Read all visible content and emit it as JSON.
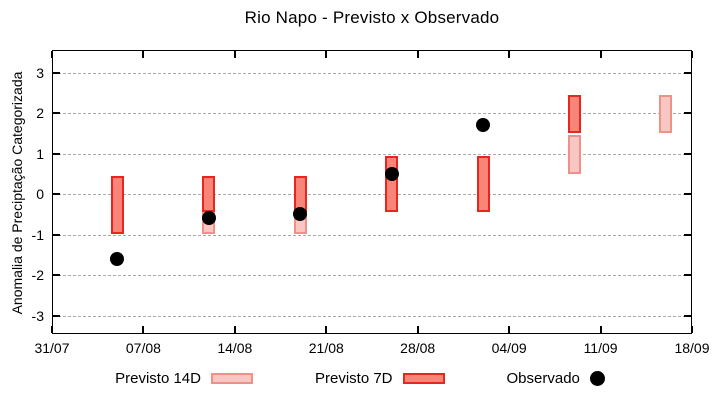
{
  "chart_data": {
    "type": "bar",
    "title": "Rio Napo - Previsto x Observado",
    "ylabel": "Anomalia de Preciptação Categorizada",
    "xlabel": "",
    "ylim": [
      -3.5,
      3.5
    ],
    "yticks": [
      3,
      2,
      1,
      0,
      -1,
      -2,
      -3
    ],
    "grid": "horizontal-dashed",
    "legend_position": "bottom",
    "x_axis": {
      "tick_labels": [
        "31/07",
        "07/08",
        "14/08",
        "21/08",
        "28/08",
        "04/09",
        "11/09",
        "18/09"
      ],
      "tick_days": [
        0,
        7,
        14,
        21,
        28,
        35,
        42,
        49
      ],
      "total_days": 49
    },
    "series": [
      {
        "name": "Previsto 14D",
        "kind": "range-bar",
        "fill": "#f9c7c3",
        "border": "#f19086",
        "bars": [
          {
            "x_label": "12/08",
            "day": 12,
            "low": -1.0,
            "high": 0.45
          },
          {
            "x_label": "19/08",
            "day": 19,
            "low": -1.0,
            "high": 0.45
          },
          {
            "x_label": "09/09",
            "day": 40,
            "low": 0.5,
            "high": 1.45
          },
          {
            "x_label": "16/09",
            "day": 47,
            "low": 1.5,
            "high": 2.45
          }
        ]
      },
      {
        "name": "Previsto 7D",
        "kind": "range-bar",
        "fill": "#f98478",
        "border": "#e8251f",
        "bars": [
          {
            "x_label": "05/08",
            "day": 5,
            "low": -1.0,
            "high": 0.45
          },
          {
            "x_label": "12/08",
            "day": 12,
            "low": -0.45,
            "high": 0.45
          },
          {
            "x_label": "19/08",
            "day": 19,
            "low": -0.45,
            "high": 0.45
          },
          {
            "x_label": "26/08",
            "day": 26,
            "low": -0.45,
            "high": 0.95
          },
          {
            "x_label": "02/09",
            "day": 33,
            "low": -0.45,
            "high": 0.95
          },
          {
            "x_label": "09/09",
            "day": 40,
            "low": 1.5,
            "high": 2.45
          }
        ]
      },
      {
        "name": "Observado",
        "kind": "scatter",
        "color": "#000000",
        "points": [
          {
            "x_label": "05/08",
            "day": 5,
            "value": -1.6
          },
          {
            "x_label": "12/08",
            "day": 12,
            "value": -0.6
          },
          {
            "x_label": "19/08",
            "day": 19,
            "value": -0.5
          },
          {
            "x_label": "26/08",
            "day": 26,
            "value": 0.5
          },
          {
            "x_label": "02/09",
            "day": 33,
            "value": 1.7
          }
        ]
      }
    ]
  },
  "legend": {
    "items": [
      {
        "label": "Previsto 14D",
        "swatch": "box",
        "fill": "#f9c7c3",
        "border": "#f19086"
      },
      {
        "label": "Previsto 7D",
        "swatch": "box",
        "fill": "#f98478",
        "border": "#e8251f"
      },
      {
        "label": "Observado",
        "swatch": "dot",
        "fill": "#000000"
      }
    ]
  }
}
